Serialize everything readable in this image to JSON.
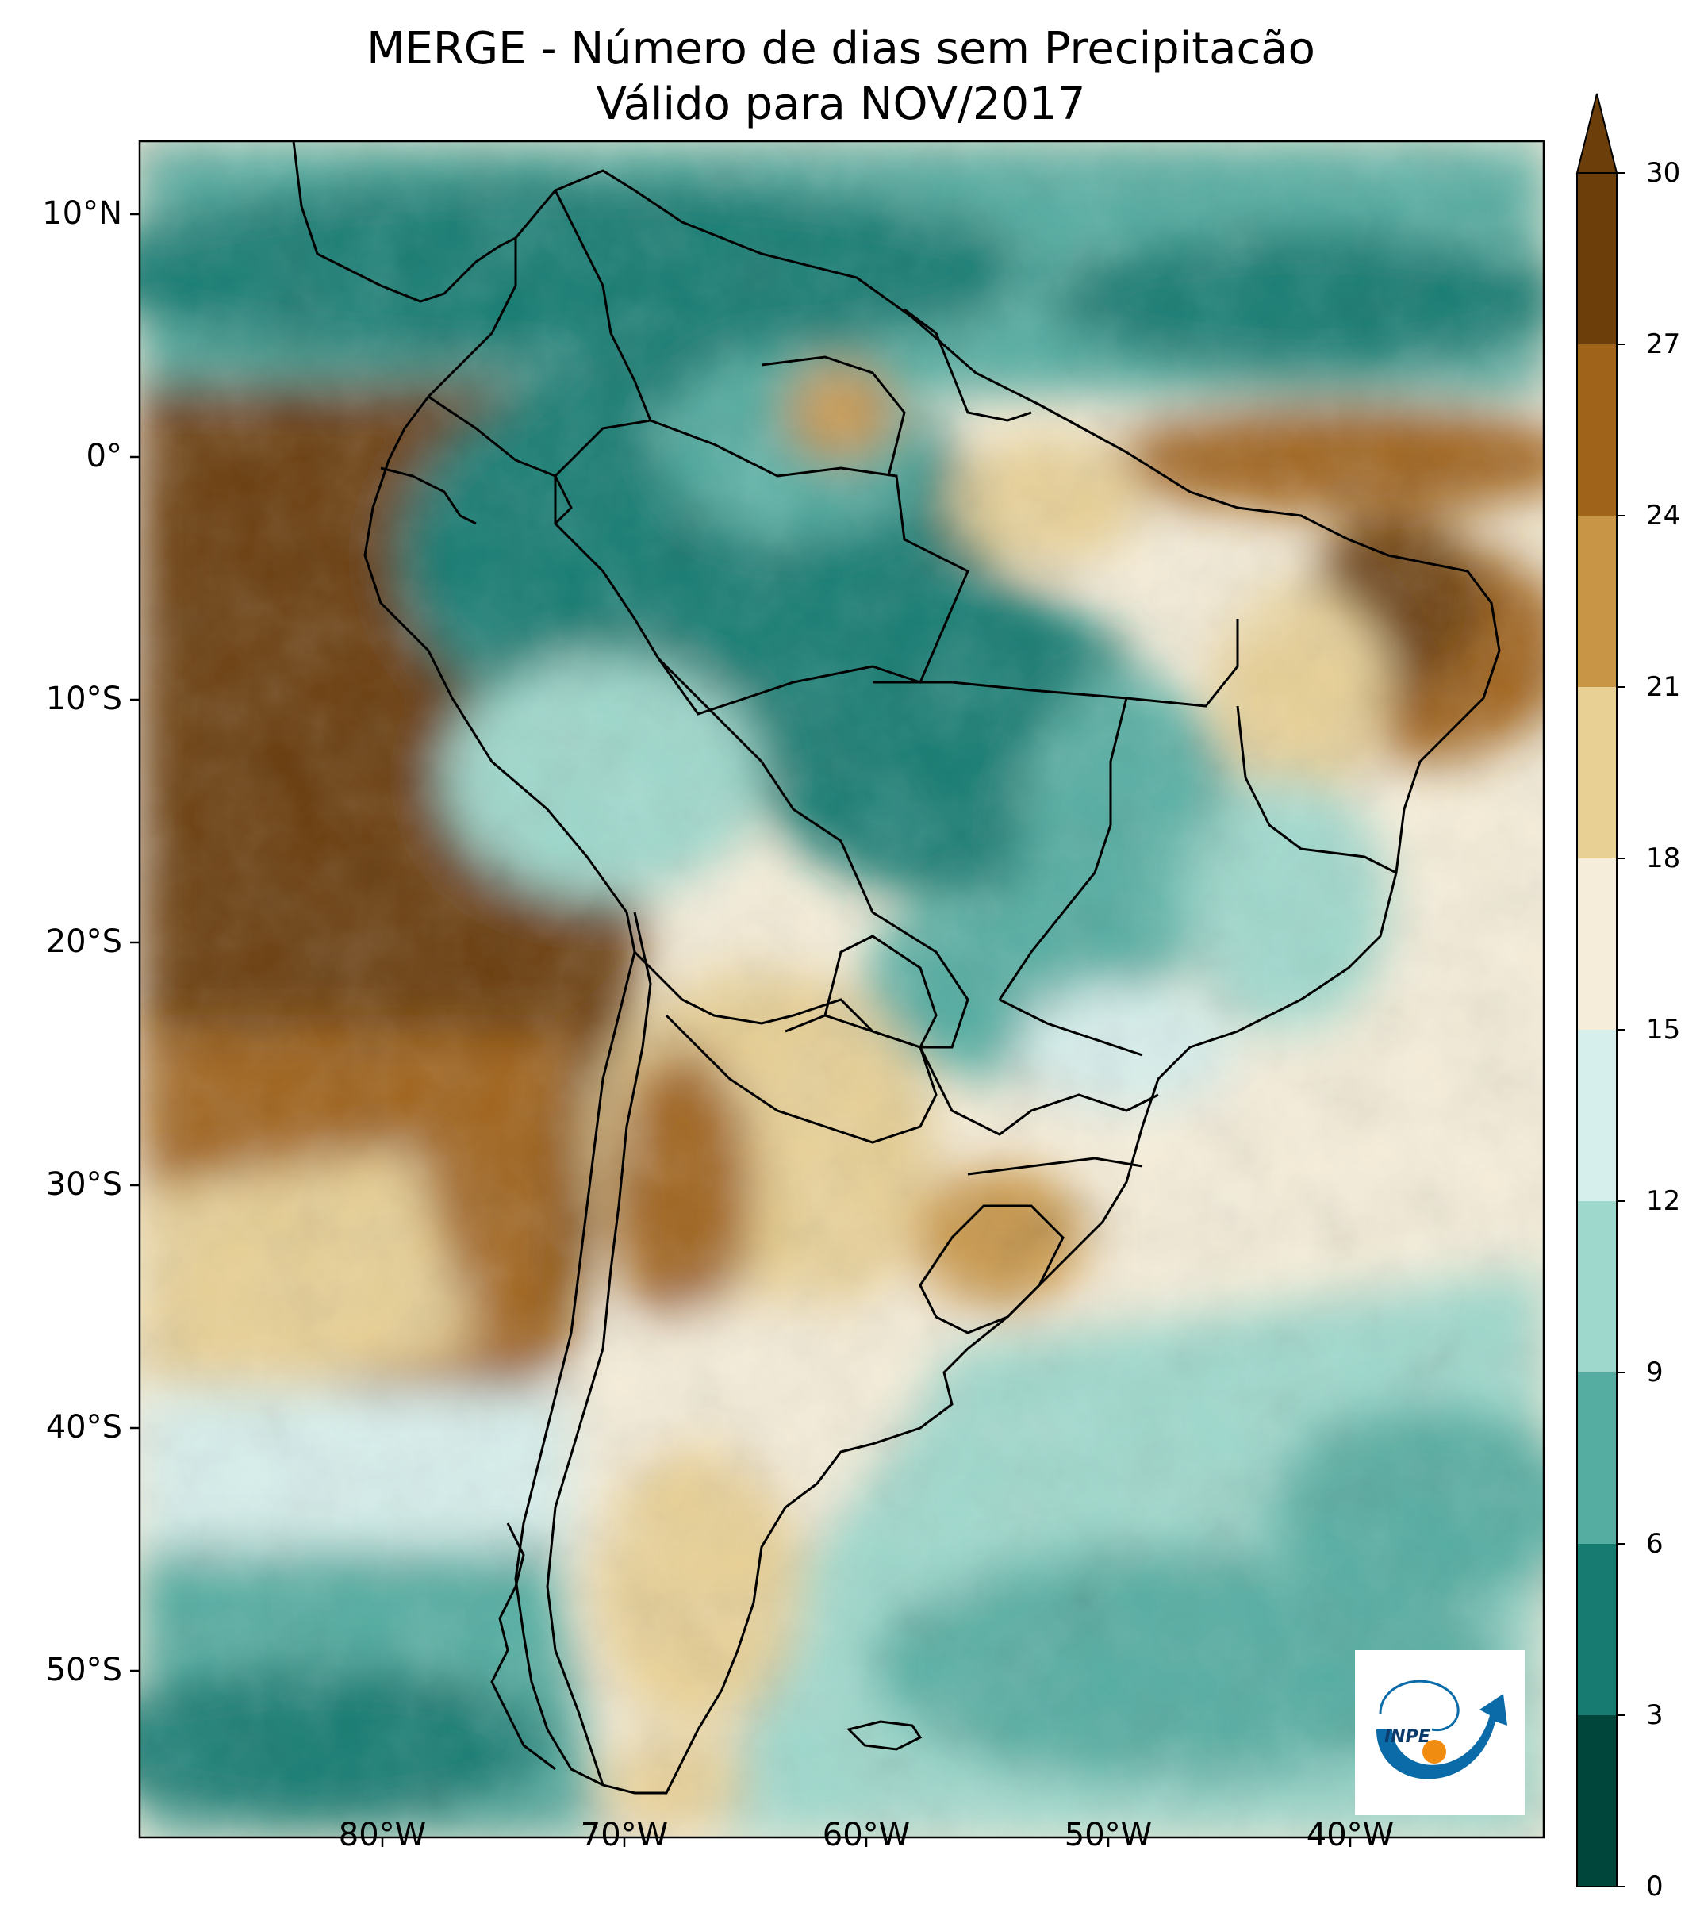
{
  "header": {
    "title_line1": "MERGE - Número de dias sem Precipitacão",
    "title_line2": "Válido para NOV/2017"
  },
  "map": {
    "region": "South America",
    "extent": {
      "lon_min": -90,
      "lon_max": -32,
      "lat_min": -57,
      "lat_max": 13
    },
    "lat_ticks": [
      {
        "value": 10,
        "label": "10°N"
      },
      {
        "value": 0,
        "label": "0°"
      },
      {
        "value": -10,
        "label": "10°S"
      },
      {
        "value": -20,
        "label": "20°S"
      },
      {
        "value": -30,
        "label": "30°S"
      },
      {
        "value": -40,
        "label": "40°S"
      },
      {
        "value": -50,
        "label": "50°S"
      }
    ],
    "lon_ticks": [
      {
        "value": -80,
        "label": "80°W"
      },
      {
        "value": -70,
        "label": "70°W"
      },
      {
        "value": -60,
        "label": "60°W"
      },
      {
        "value": -50,
        "label": "50°W"
      },
      {
        "value": -40,
        "label": "40°W"
      }
    ],
    "logo_icon": "inpe-logo-icon",
    "logo_text": "INPE"
  },
  "colorbar": {
    "levels": [
      "0",
      "3",
      "6",
      "9",
      "12",
      "15",
      "18",
      "21",
      "24",
      "27",
      "30"
    ],
    "colors": [
      "#01463a",
      "#177b72",
      "#55ada2",
      "#9ed8cc",
      "#d7efec",
      "#f5edd9",
      "#e8d095",
      "#c89547",
      "#a0631a",
      "#6b3e0a"
    ],
    "extend": "max"
  }
}
